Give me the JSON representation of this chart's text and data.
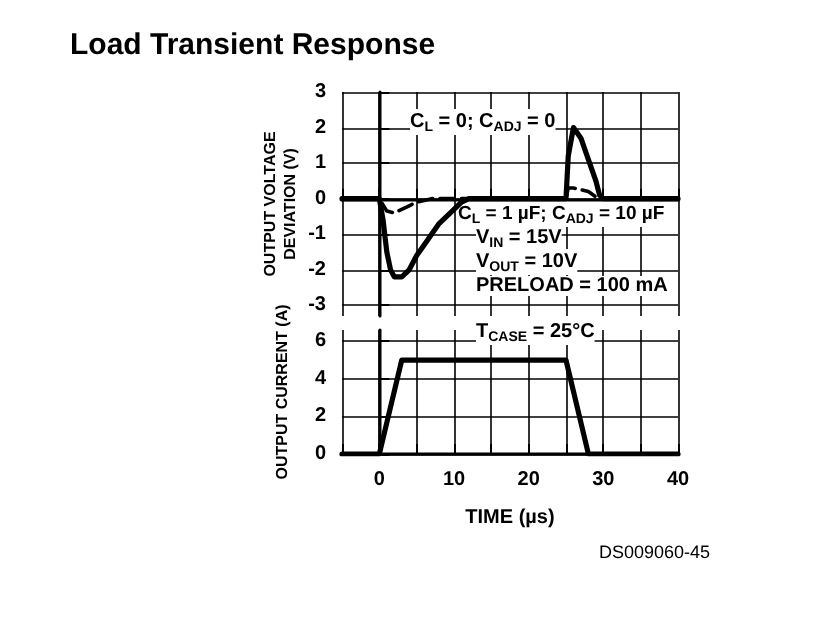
{
  "chart_data": [
    {
      "type": "line",
      "title": "Load Transient Response",
      "ylabel": "OUTPUT VOLTAGE DEVIATION (V)",
      "xlim": [
        -5,
        40
      ],
      "xticks": [
        {
          "value": -5,
          "label": null
        },
        {
          "value": 0,
          "label": null
        },
        {
          "value": 5,
          "label": null
        },
        {
          "value": 10,
          "label": null
        },
        {
          "value": 15,
          "label": null
        },
        {
          "value": 20,
          "label": null
        },
        {
          "value": 25,
          "label": null
        },
        {
          "value": 30,
          "label": null
        },
        {
          "value": 35,
          "label": null
        },
        {
          "value": 40,
          "label": null
        }
      ],
      "ylim": [
        -3.3,
        3
      ],
      "yticks": [
        -3,
        -2,
        -1,
        0,
        1,
        2,
        3
      ],
      "tick_labels": "y",
      "grid": true,
      "marker": "none",
      "series": [
        {
          "color": "#000000",
          "line_style": "solid",
          "x": [
            -5,
            0,
            0.5,
            1,
            1.5,
            2,
            3,
            4,
            5,
            6,
            8,
            10,
            11,
            12,
            25,
            25.3,
            26,
            27,
            28,
            29,
            29.5,
            30,
            40
          ],
          "values": [
            0,
            0,
            -0.6,
            -1.5,
            -2.0,
            -2.2,
            -2.2,
            -2.0,
            -1.6,
            -1.3,
            -0.7,
            -0.3,
            -0.1,
            0,
            0,
            1.2,
            2.0,
            1.7,
            1.1,
            0.5,
            0.1,
            0,
            0
          ]
        },
        {
          "color": "#000000",
          "line_style": "dashed",
          "x": [
            -5,
            0,
            1,
            2,
            3,
            4,
            5,
            6,
            7,
            25,
            25.3,
            26,
            27,
            28,
            29,
            30,
            40
          ],
          "values": [
            0,
            0,
            -0.35,
            -0.4,
            -0.3,
            -0.2,
            -0.1,
            -0.05,
            0,
            0,
            0.3,
            0.3,
            0.25,
            0.2,
            0.05,
            0,
            0
          ]
        }
      ],
      "annotations": [
        "C$_{L}$ = 0; C$_{ADJ}$ = 0",
        "C$_{L}$ = 1 µF; C$_{ADJ}$ = 10 µF",
        "V$_{IN}$ = 15V",
        "V$_{OUT}$ = 10V",
        "PRELOAD = 100 mA"
      ]
    },
    {
      "type": "line",
      "xlabel": "TIME (µs)",
      "ylabel": "OUTPUT CURRENT (A)",
      "xlim": [
        -5,
        40
      ],
      "xticks": [
        {
          "value": -5,
          "label": null
        },
        {
          "value": 0,
          "label": "0"
        },
        {
          "value": 5,
          "label": null
        },
        {
          "value": 10,
          "label": "10"
        },
        {
          "value": 15,
          "label": null
        },
        {
          "value": 20,
          "label": "20"
        },
        {
          "value": 25,
          "label": null
        },
        {
          "value": 30,
          "label": "30"
        },
        {
          "value": 35,
          "label": null
        },
        {
          "value": 40,
          "label": "40"
        }
      ],
      "ylim": [
        0,
        6.6
      ],
      "yticks": [
        0,
        2,
        4,
        6
      ],
      "grid": true,
      "marker": "none",
      "series": [
        {
          "color": "#000000",
          "line_style": "solid",
          "x": [
            -5,
            0,
            3,
            25,
            28,
            40
          ],
          "values": [
            0,
            0,
            5,
            5,
            0,
            0
          ]
        }
      ],
      "annotations": [
        "T$_{CASE}$ = 25°C",
        "DS009060-45"
      ]
    }
  ]
}
